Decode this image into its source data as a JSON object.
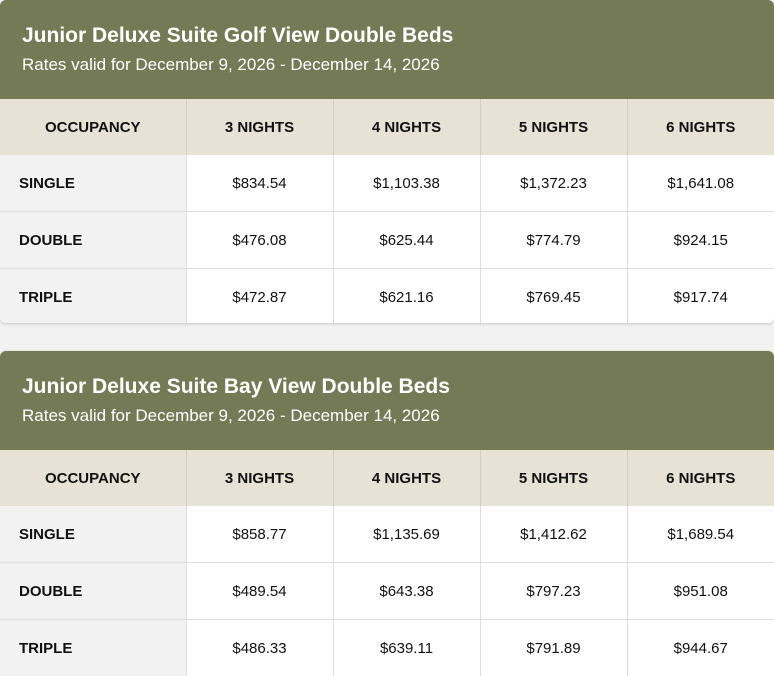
{
  "headers": [
    "OCCUPANCY",
    "3 NIGHTS",
    "4 NIGHTS",
    "5 NIGHTS",
    "6 NIGHTS"
  ],
  "colors": {
    "header_bg": "#747a56",
    "column_header_bg": "#e6e2d6",
    "occupancy_cell_bg": "#f2f2f2",
    "page_bg": "#f2f2f2"
  },
  "rooms": [
    {
      "title": "Junior Deluxe Suite Golf View Double Beds",
      "subtitle": "Rates valid for December 9, 2026 - December 14, 2026",
      "rows": [
        {
          "occupancy": "SINGLE",
          "n3": "$834.54",
          "n4": "$1,103.38",
          "n5": "$1,372.23",
          "n6": "$1,641.08"
        },
        {
          "occupancy": "DOUBLE",
          "n3": "$476.08",
          "n4": "$625.44",
          "n5": "$774.79",
          "n6": "$924.15"
        },
        {
          "occupancy": "TRIPLE",
          "n3": "$472.87",
          "n4": "$621.16",
          "n5": "$769.45",
          "n6": "$917.74"
        }
      ]
    },
    {
      "title": "Junior Deluxe Suite Bay View Double Beds",
      "subtitle": "Rates valid for December 9, 2026 - December 14, 2026",
      "rows": [
        {
          "occupancy": "SINGLE",
          "n3": "$858.77",
          "n4": "$1,135.69",
          "n5": "$1,412.62",
          "n6": "$1,689.54"
        },
        {
          "occupancy": "DOUBLE",
          "n3": "$489.54",
          "n4": "$643.38",
          "n5": "$797.23",
          "n6": "$951.08"
        },
        {
          "occupancy": "TRIPLE",
          "n3": "$486.33",
          "n4": "$639.11",
          "n5": "$791.89",
          "n6": "$944.67"
        }
      ]
    }
  ]
}
